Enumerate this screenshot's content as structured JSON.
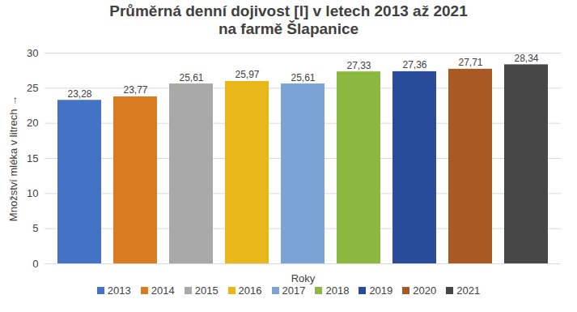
{
  "chart_data": {
    "type": "bar",
    "title": "Průměrná denní dojivost [l] v letech 2013 až 2021\nna farmě Šlapanice",
    "x_label": "Roky",
    "y_label": "Množství mléka v litrech",
    "categories": [
      "2013",
      "2014",
      "2015",
      "2016",
      "2017",
      "2018",
      "2019",
      "2020",
      "2021"
    ],
    "values": [
      23.28,
      23.77,
      25.61,
      25.97,
      25.61,
      27.33,
      27.36,
      27.71,
      28.34
    ],
    "value_labels": [
      "23,28",
      "23,77",
      "25,61",
      "25,97",
      "25,61",
      "27,33",
      "27,36",
      "27,71",
      "28,34"
    ],
    "colors": [
      "#4472c4",
      "#d97b21",
      "#a9a9a9",
      "#e8b81a",
      "#7ba3d6",
      "#8cb83f",
      "#284b9a",
      "#a85a25",
      "#474747"
    ],
    "ylim": [
      0,
      30
    ],
    "yticks": [
      0,
      5,
      10,
      15,
      20,
      25,
      30
    ],
    "grid": true,
    "data_labels": true,
    "tick_labels": "y",
    "legend": "bottom"
  }
}
